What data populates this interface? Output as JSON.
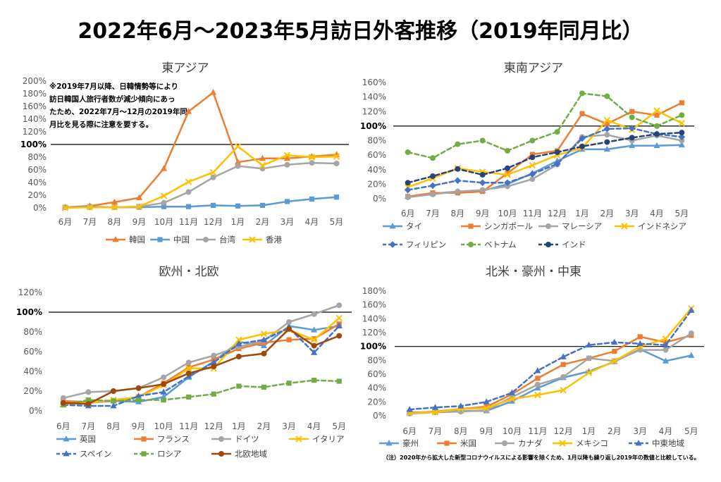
{
  "title": "2022年6月～2023年5月訪日外客推移（2019年同月比）",
  "footnote": "（注）2020年から拡大した新型コロナウイルスによる影響を除くため、1月以降も繰り返し2019年の数値と比較している。",
  "chart_data": [
    {
      "type": "line",
      "title": "東アジア",
      "categories": [
        "6月",
        "7月",
        "8月",
        "9月",
        "10月",
        "11月",
        "12月",
        "1月",
        "2月",
        "3月",
        "4月",
        "5月"
      ],
      "ylim": [
        0,
        200
      ],
      "y_ticks": [
        0,
        20,
        40,
        60,
        80,
        100,
        120,
        140,
        160,
        180,
        200
      ],
      "y_tick_labels": [
        "0%",
        "20%",
        "40%",
        "60%",
        "80%",
        "100%",
        "120%",
        "140%",
        "160%",
        "180%",
        "200%"
      ],
      "reference_line": 100,
      "grid": false,
      "legend": "bottom",
      "annotation": [
        "※2019年7月以降、日韓情勢等により",
        "訪日韓国人旅行者数が減少傾向にあっ",
        "たため、2022年7月～12月の2019年同",
        "月比を見る際に注意を要する。"
      ],
      "series": [
        {
          "name": "韓国",
          "color": "#ED7D31",
          "marker": "triangle",
          "dashed": false,
          "values": [
            1,
            3,
            9,
            16,
            62,
            152,
            182,
            72,
            78,
            78,
            81,
            84
          ]
        },
        {
          "name": "中国",
          "color": "#5B9BD5",
          "marker": "square",
          "dashed": false,
          "values": [
            1,
            2,
            1,
            1,
            2,
            2,
            4,
            3,
            4,
            10,
            14,
            17
          ]
        },
        {
          "name": "台湾",
          "color": "#A5A5A5",
          "marker": "circle",
          "dashed": false,
          "values": [
            1,
            1,
            1,
            2,
            8,
            25,
            48,
            66,
            62,
            68,
            71,
            70
          ]
        },
        {
          "name": "香港",
          "color": "#FFC000",
          "marker": "x",
          "dashed": false,
          "values": [
            0,
            1,
            1,
            2,
            19,
            41,
            56,
            97,
            67,
            83,
            80,
            81
          ]
        }
      ]
    },
    {
      "type": "line",
      "title": "東南アジア",
      "categories": [
        "6月",
        "7月",
        "8月",
        "9月",
        "10月",
        "11月",
        "12月",
        "1月",
        "2月",
        "3月",
        "4月",
        "5月"
      ],
      "ylim": [
        0,
        160
      ],
      "y_ticks": [
        0,
        20,
        40,
        60,
        80,
        100,
        120,
        140,
        160
      ],
      "y_tick_labels": [
        "0%",
        "20%",
        "40%",
        "60%",
        "80%",
        "100%",
        "120%",
        "140%",
        "160%"
      ],
      "reference_line": 100,
      "grid": false,
      "legend": "bottom",
      "series": [
        {
          "name": "タイ",
          "color": "#5B9BD5",
          "marker": "triangle",
          "dashed": false,
          "values": [
            3,
            7,
            10,
            11,
            20,
            35,
            52,
            68,
            68,
            73,
            73,
            74
          ]
        },
        {
          "name": "シンガポール",
          "color": "#ED7D31",
          "marker": "square",
          "dashed": false,
          "values": [
            3,
            8,
            8,
            10,
            35,
            61,
            66,
            117,
            103,
            120,
            115,
            132
          ]
        },
        {
          "name": "マレーシア",
          "color": "#A5A5A5",
          "marker": "circle",
          "dashed": false,
          "values": [
            2,
            6,
            10,
            12,
            17,
            27,
            47,
            85,
            88,
            80,
            87,
            80
          ]
        },
        {
          "name": "インドネシア",
          "color": "#FFC000",
          "marker": "x",
          "dashed": false,
          "values": [
            16,
            28,
            42,
            37,
            33,
            46,
            60,
            70,
            108,
            95,
            121,
            104
          ]
        },
        {
          "name": "フィリピン",
          "color": "#4472C4",
          "marker": "diamond",
          "dashed": true,
          "values": [
            12,
            18,
            25,
            22,
            22,
            34,
            48,
            83,
            96,
            97,
            89,
            85
          ]
        },
        {
          "name": "ベトナム",
          "color": "#70AD47",
          "marker": "circle",
          "dashed": true,
          "values": [
            64,
            56,
            75,
            80,
            66,
            80,
            92,
            145,
            141,
            112,
            100,
            115
          ]
        },
        {
          "name": "インド",
          "color": "#264478",
          "marker": "circle",
          "dashed": true,
          "values": [
            22,
            31,
            41,
            33,
            42,
            57,
            64,
            72,
            78,
            84,
            89,
            91
          ]
        }
      ]
    },
    {
      "type": "line",
      "title": "欧州・北欧",
      "categories": [
        "6月",
        "7月",
        "8月",
        "9月",
        "10月",
        "11月",
        "12月",
        "1月",
        "2月",
        "3月",
        "4月",
        "5月"
      ],
      "ylim": [
        0,
        120
      ],
      "y_ticks": [
        0,
        20,
        40,
        60,
        80,
        100,
        120
      ],
      "y_tick_labels": [
        "0%",
        "20%",
        "40%",
        "60%",
        "80%",
        "100%",
        "120%"
      ],
      "reference_line": 100,
      "grid": false,
      "legend": "bottom",
      "series": [
        {
          "name": "英国",
          "color": "#5B9BD5",
          "marker": "triangle",
          "dashed": false,
          "values": [
            9,
            8,
            10,
            9,
            14,
            34,
            50,
            70,
            66,
            86,
            82,
            86
          ]
        },
        {
          "name": "フランス",
          "color": "#ED7D31",
          "marker": "square",
          "dashed": false,
          "values": [
            10,
            9,
            10,
            14,
            28,
            44,
            52,
            63,
            69,
            72,
            73,
            88
          ]
        },
        {
          "name": "ドイツ",
          "color": "#A5A5A5",
          "marker": "circle",
          "dashed": false,
          "values": [
            13,
            19,
            20,
            23,
            34,
            49,
            56,
            65,
            71,
            90,
            98,
            107
          ]
        },
        {
          "name": "イタリア",
          "color": "#FFC000",
          "marker": "x",
          "dashed": false,
          "values": [
            7,
            8,
            11,
            14,
            26,
            43,
            43,
            72,
            78,
            82,
            72,
            94
          ]
        },
        {
          "name": "スペイン",
          "color": "#4472C4",
          "marker": "triangle",
          "dashed": true,
          "values": [
            6,
            5,
            5,
            15,
            19,
            35,
            49,
            68,
            72,
            84,
            59,
            86
          ]
        },
        {
          "name": "ロシア",
          "color": "#70AD47",
          "marker": "square",
          "dashed": true,
          "values": [
            6,
            11,
            10,
            11,
            11,
            14,
            17,
            25,
            24,
            28,
            31,
            30
          ]
        },
        {
          "name": "北欧地域",
          "color": "#9E480E",
          "marker": "circle",
          "dashed": false,
          "values": [
            8,
            7,
            20,
            23,
            27,
            38,
            45,
            55,
            58,
            83,
            66,
            76
          ]
        }
      ]
    },
    {
      "type": "line",
      "title": "北米・豪州・中東",
      "categories": [
        "6月",
        "7月",
        "8月",
        "9月",
        "10月",
        "11月",
        "12月",
        "1月",
        "2月",
        "3月",
        "4月",
        "5月"
      ],
      "ylim": [
        0,
        180
      ],
      "y_ticks": [
        0,
        20,
        40,
        60,
        80,
        100,
        120,
        140,
        160,
        180
      ],
      "y_tick_labels": [
        "0%",
        "20%",
        "40%",
        "60%",
        "80%",
        "100%",
        "120%",
        "140%",
        "160%",
        "180%"
      ],
      "reference_line": 100,
      "grid": false,
      "legend": "bottom",
      "series": [
        {
          "name": "豪州",
          "color": "#5B9BD5",
          "marker": "triangle",
          "dashed": false,
          "values": [
            5,
            5,
            7,
            7,
            21,
            40,
            55,
            64,
            78,
            96,
            79,
            87
          ]
        },
        {
          "name": "米国",
          "color": "#ED7D31",
          "marker": "square",
          "dashed": false,
          "values": [
            4,
            6,
            10,
            13,
            31,
            54,
            74,
            83,
            93,
            114,
            106,
            116
          ]
        },
        {
          "name": "カナダ",
          "color": "#A5A5A5",
          "marker": "circle",
          "dashed": false,
          "values": [
            3,
            5,
            6,
            8,
            27,
            45,
            56,
            83,
            79,
            95,
            95,
            119
          ]
        },
        {
          "name": "メキシコ",
          "color": "#FFC000",
          "marker": "x",
          "dashed": false,
          "values": [
            4,
            5,
            10,
            11,
            24,
            30,
            37,
            62,
            79,
            100,
            111,
            155
          ]
        },
        {
          "name": "中東地域",
          "color": "#4472C4",
          "marker": "triangle",
          "dashed": true,
          "values": [
            9,
            12,
            14,
            20,
            33,
            65,
            85,
            102,
            106,
            104,
            102,
            152
          ]
        }
      ]
    }
  ]
}
